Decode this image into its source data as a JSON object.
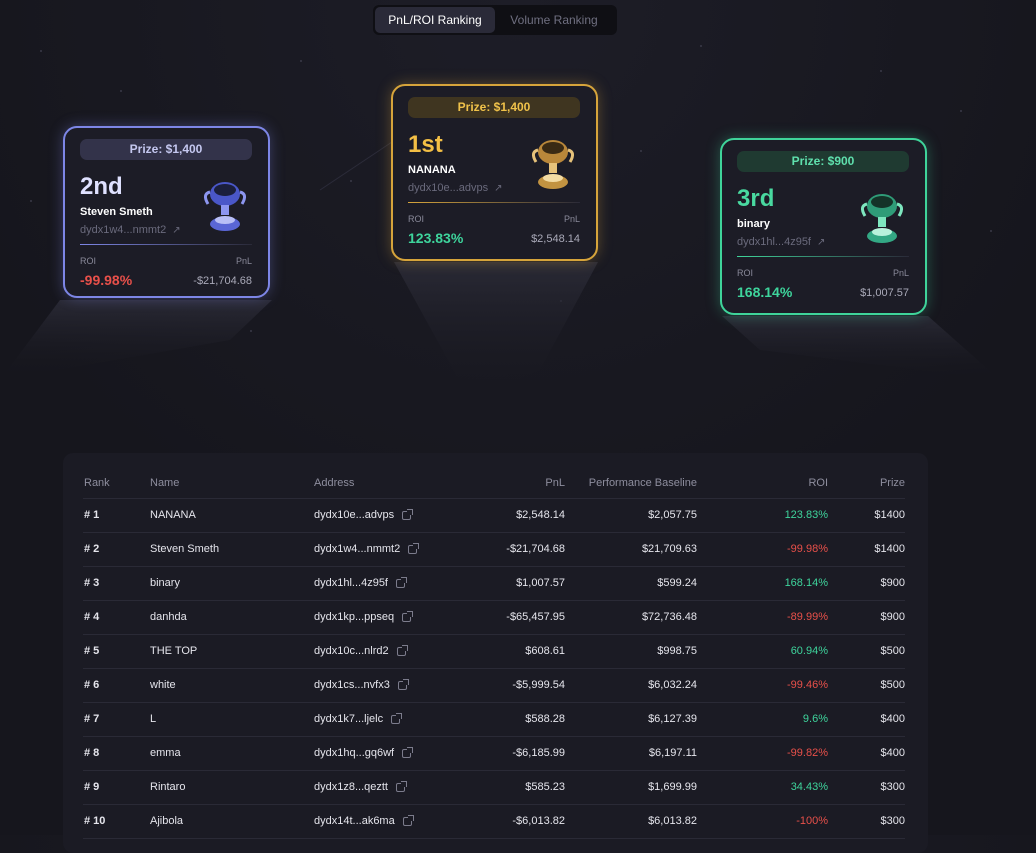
{
  "tabs": [
    {
      "label": "PnL/ROI Ranking",
      "active": true
    },
    {
      "label": "Volume Ranking",
      "active": false
    }
  ],
  "podium": {
    "first": {
      "prize": "Prize: $1,400",
      "place": "1st",
      "name": "NANANA",
      "address": "dydx10e...advps",
      "link_arrow": "↗",
      "roi_label": "ROI",
      "pnl_label": "PnL",
      "roi": "123.83%",
      "pnl": "$2,548.14",
      "accent": "#d6a43b"
    },
    "second": {
      "prize": "Prize: $1,400",
      "place": "2nd",
      "name": "Steven Smeth",
      "address": "dydx1w4...nmmt2",
      "link_arrow": "↗",
      "roi_label": "ROI",
      "pnl_label": "PnL",
      "roi": "-99.98%",
      "pnl": "-$21,704.68",
      "accent": "#7d86e6"
    },
    "third": {
      "prize": "Prize: $900",
      "place": "3rd",
      "name": "binary",
      "address": "dydx1hl...4z95f",
      "link_arrow": "↗",
      "roi_label": "ROI",
      "pnl_label": "PnL",
      "roi": "168.14%",
      "pnl": "$1,007.57",
      "accent": "#3fd49a"
    }
  },
  "table": {
    "headers": {
      "rank": "Rank",
      "name": "Name",
      "address": "Address",
      "pnl": "PnL",
      "baseline": "Performance Baseline",
      "roi": "ROI",
      "prize": "Prize"
    },
    "rows": [
      {
        "rank": "# 1",
        "name": "NANANA",
        "address": "dydx10e...advps",
        "pnl": "$2,548.14",
        "baseline": "$2,057.75",
        "roi": "123.83%",
        "roi_positive": true,
        "prize": "$1400"
      },
      {
        "rank": "# 2",
        "name": "Steven Smeth",
        "address": "dydx1w4...nmmt2",
        "pnl": "-$21,704.68",
        "baseline": "$21,709.63",
        "roi": "-99.98%",
        "roi_positive": false,
        "prize": "$1400"
      },
      {
        "rank": "# 3",
        "name": "binary",
        "address": "dydx1hl...4z95f",
        "pnl": "$1,007.57",
        "baseline": "$599.24",
        "roi": "168.14%",
        "roi_positive": true,
        "prize": "$900"
      },
      {
        "rank": "# 4",
        "name": "danhda",
        "address": "dydx1kp...ppseq",
        "pnl": "-$65,457.95",
        "baseline": "$72,736.48",
        "roi": "-89.99%",
        "roi_positive": false,
        "prize": "$900"
      },
      {
        "rank": "# 5",
        "name": "THE TOP",
        "address": "dydx10c...nlrd2",
        "pnl": "$608.61",
        "baseline": "$998.75",
        "roi": "60.94%",
        "roi_positive": true,
        "prize": "$500"
      },
      {
        "rank": "# 6",
        "name": "white",
        "address": "dydx1cs...nvfx3",
        "pnl": "-$5,999.54",
        "baseline": "$6,032.24",
        "roi": "-99.46%",
        "roi_positive": false,
        "prize": "$500"
      },
      {
        "rank": "# 7",
        "name": "L",
        "address": "dydx1k7...ljelc",
        "pnl": "$588.28",
        "baseline": "$6,127.39",
        "roi": "9.6%",
        "roi_positive": true,
        "prize": "$400"
      },
      {
        "rank": "# 8",
        "name": "emma",
        "address": "dydx1hq...gq6wf",
        "pnl": "-$6,185.99",
        "baseline": "$6,197.11",
        "roi": "-99.82%",
        "roi_positive": false,
        "prize": "$400"
      },
      {
        "rank": "# 9",
        "name": "Rintaro",
        "address": "dydx1z8...qeztt",
        "pnl": "$585.23",
        "baseline": "$1,699.99",
        "roi": "34.43%",
        "roi_positive": true,
        "prize": "$300"
      },
      {
        "rank": "# 10",
        "name": "Ajibola",
        "address": "dydx14t...ak6ma",
        "pnl": "-$6,013.82",
        "baseline": "$6,013.82",
        "roi": "-100%",
        "roi_positive": false,
        "prize": "$300"
      }
    ]
  },
  "colors": {
    "positive": "#3ed49c",
    "negative": "#e8504a",
    "gold": "#d6a43b",
    "silver": "#7d86e6",
    "bronze": "#3fd49a"
  }
}
